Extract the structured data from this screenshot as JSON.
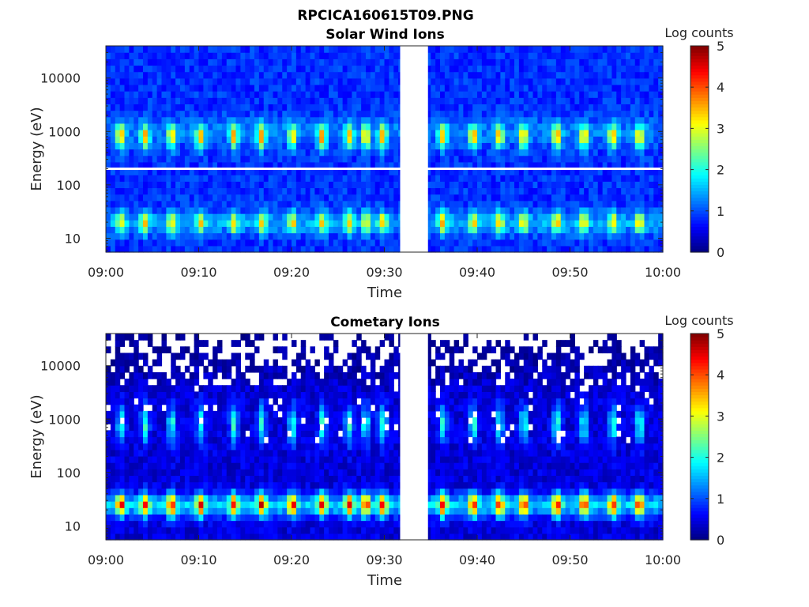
{
  "figure": {
    "title": "RPCICA160615T09.PNG"
  },
  "chart_data": [
    {
      "type": "heatmap",
      "title": "Solar Wind Ions",
      "xlabel": "Time",
      "ylabel": "Energy (eV)",
      "x_range": [
        "09:00",
        "10:00"
      ],
      "x_ticks": [
        "09:00",
        "09:10",
        "09:20",
        "09:30",
        "09:40",
        "09:50",
        "10:00"
      ],
      "y_scale": "log",
      "y_range_eV": [
        5.5,
        40000
      ],
      "y_ticks": [
        10,
        100,
        1000,
        10000
      ],
      "y_tick_labels": [
        "10",
        "100",
        "1000",
        "10000"
      ],
      "data_gap_minutes": [
        31.7,
        34.7
      ],
      "missing_energy_bin_eV": 200,
      "pulses_minute": [
        1.6,
        4.2,
        7.1,
        10.2,
        13.8,
        16.8,
        20.1,
        23.3,
        26.2,
        28.0,
        29.8,
        36.3,
        39.6,
        42.4,
        45.0,
        48.6,
        51.5,
        54.6,
        57.5
      ],
      "features": [
        {
          "name": "solar wind peak",
          "energy_eV": 800,
          "log_counts": 2.4
        },
        {
          "name": "low-energy band",
          "energy_eV": 20,
          "log_counts": 2.0
        },
        {
          "name": "background",
          "log_counts": 0.8
        }
      ],
      "colorbar": {
        "label": "Log counts",
        "min": 0,
        "max": 5,
        "ticks": [
          "0",
          "1",
          "2",
          "3",
          "4",
          "5"
        ]
      }
    },
    {
      "type": "heatmap",
      "title": "Cometary Ions",
      "xlabel": "Time",
      "ylabel": "Energy (eV)",
      "x_range": [
        "09:00",
        "10:00"
      ],
      "x_ticks": [
        "09:00",
        "09:10",
        "09:20",
        "09:30",
        "09:40",
        "09:50",
        "10:00"
      ],
      "y_scale": "log",
      "y_range_eV": [
        5.5,
        40000
      ],
      "y_ticks": [
        10,
        100,
        1000,
        10000
      ],
      "y_tick_labels": [
        "10",
        "100",
        "1000",
        "10000"
      ],
      "data_gap_minutes": [
        31.7,
        34.7
      ],
      "pulses_minute": [
        1.6,
        4.2,
        7.1,
        10.2,
        13.8,
        16.8,
        20.1,
        23.3,
        26.2,
        28.0,
        29.8,
        36.3,
        39.6,
        42.4,
        45.0,
        48.6,
        51.5,
        54.6,
        57.5
      ],
      "features": [
        {
          "name": "low-energy peak",
          "energy_eV": 25,
          "log_counts": 2.9
        },
        {
          "name": "mid-energy streaks",
          "energy_eV": 800,
          "log_counts": 1.6
        },
        {
          "name": "background",
          "log_counts": 0.4
        }
      ],
      "colorbar": {
        "label": "Log counts",
        "min": 0,
        "max": 5,
        "ticks": [
          "0",
          "1",
          "2",
          "3",
          "4",
          "5"
        ]
      }
    }
  ]
}
